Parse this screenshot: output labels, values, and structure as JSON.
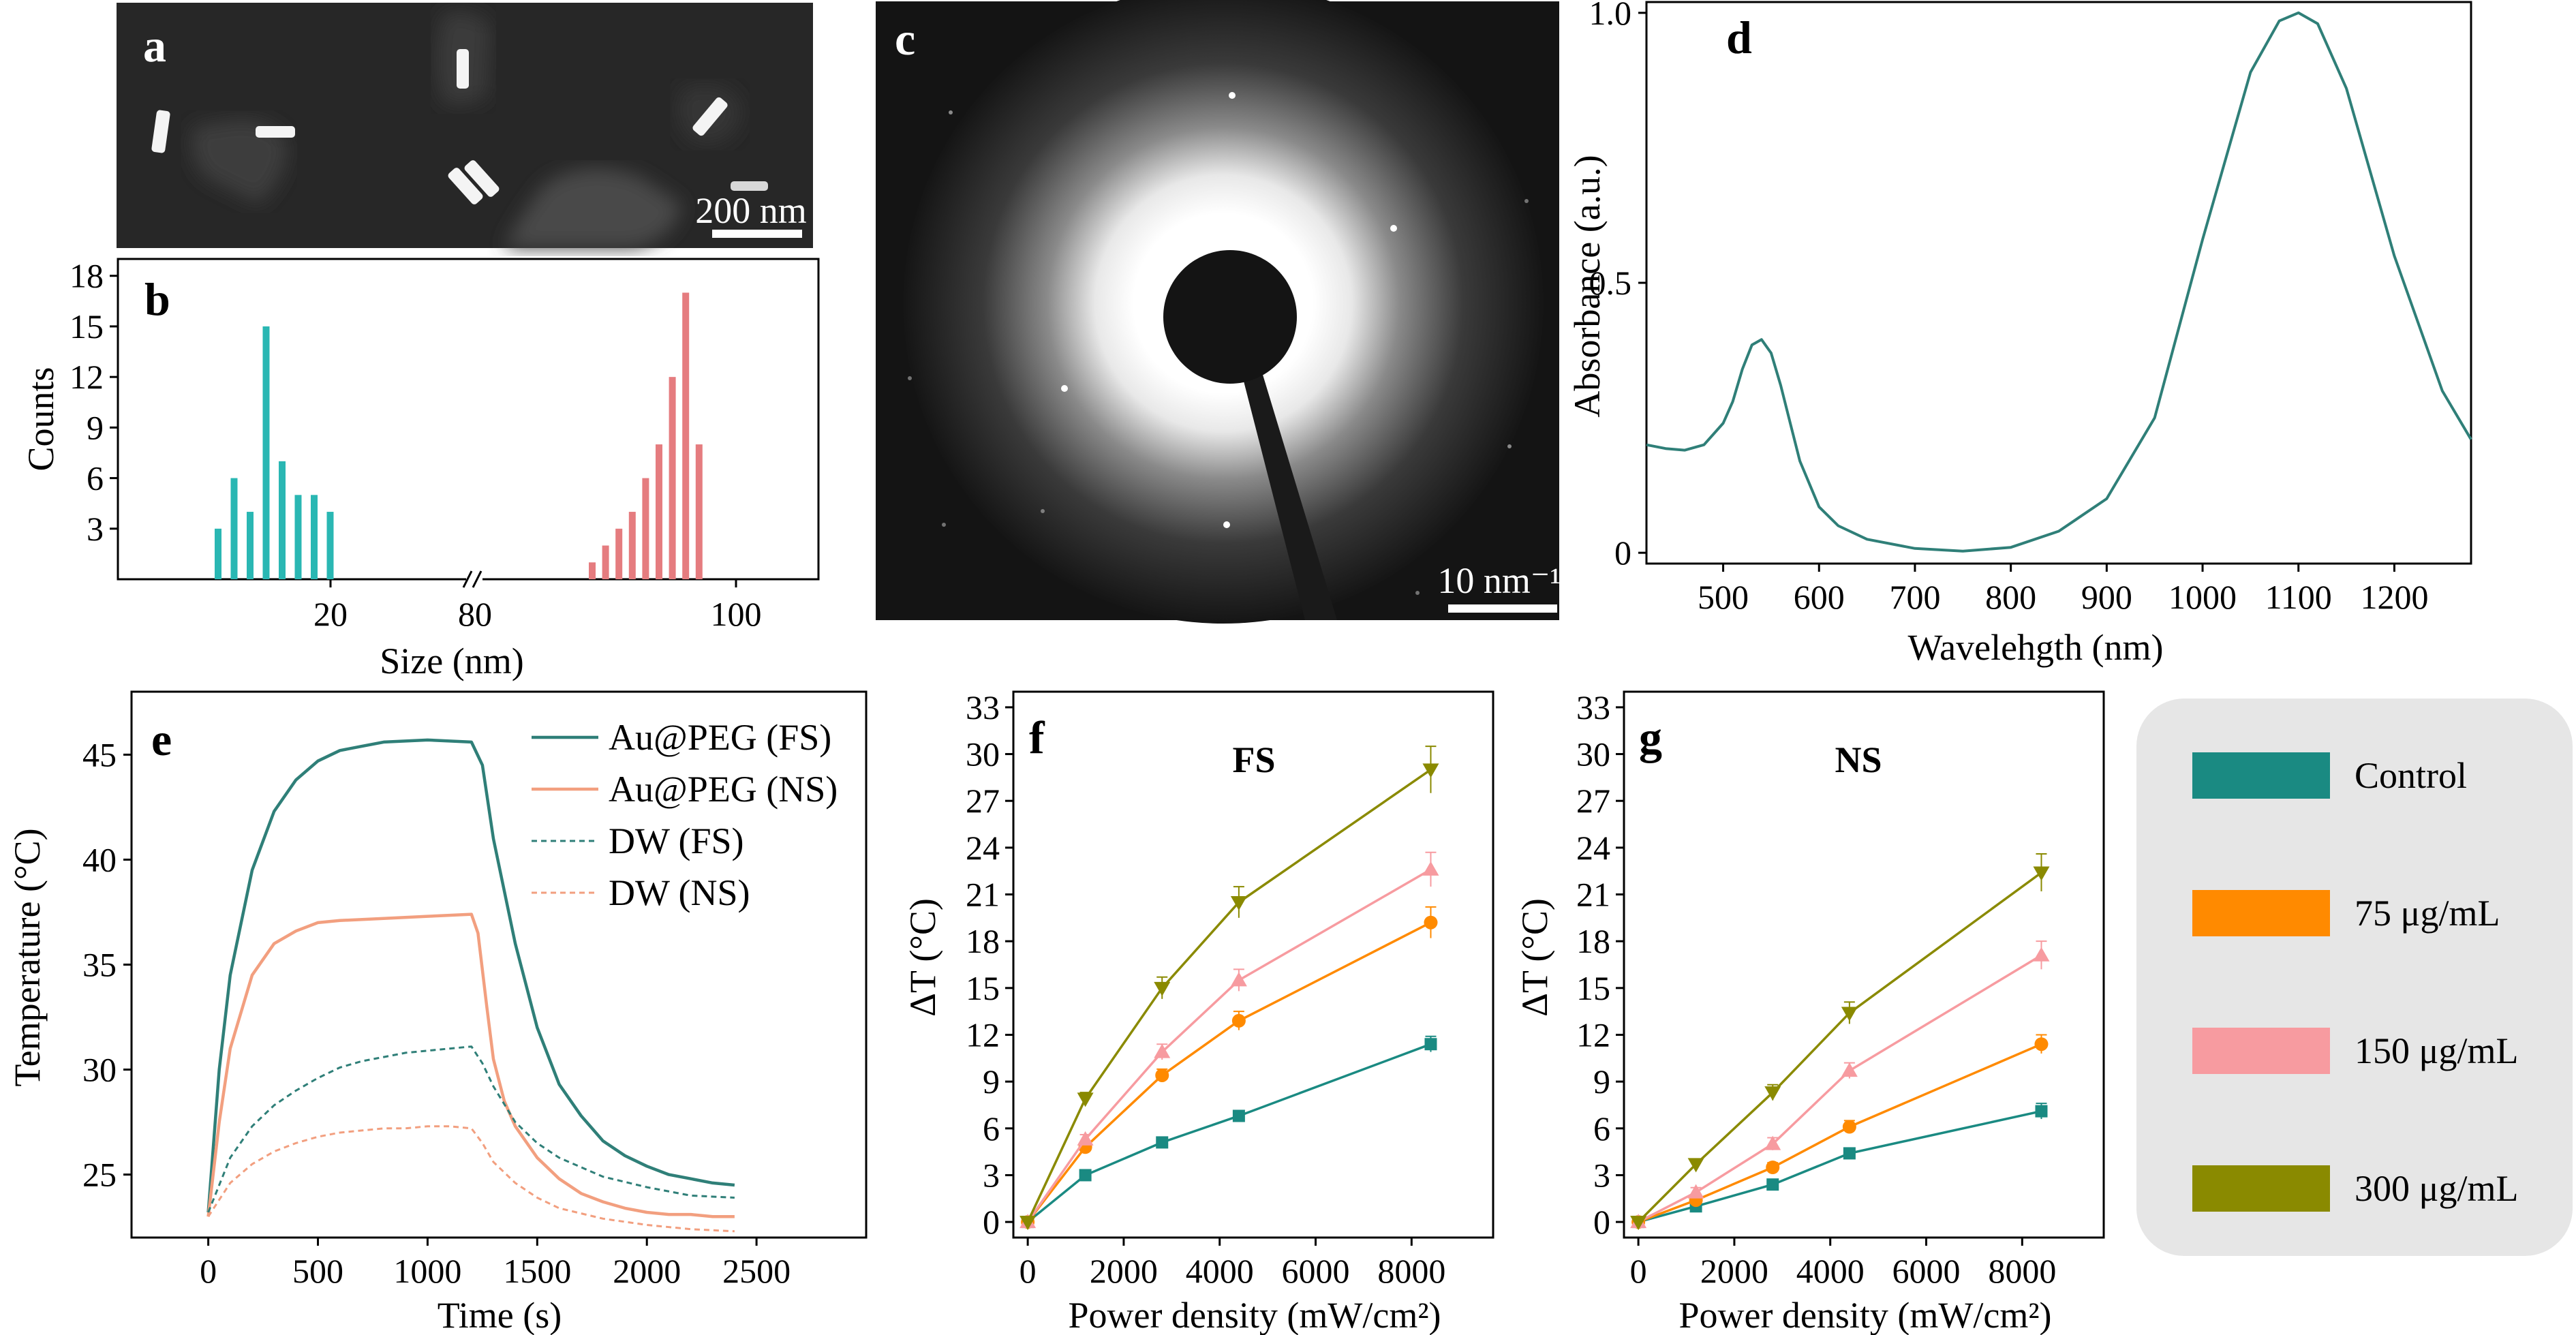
{
  "colors": {
    "teal": "#2f7f78",
    "salmon": "#f29f7f",
    "teal_bar": "#2ab7b3",
    "red_bar": "#e57c7f",
    "control": "#1a8a82",
    "c75": "#ff8a00",
    "c150": "#f79ba0",
    "c300": "#8a8a00",
    "legend_bg": "#e6e6e6"
  },
  "panels": {
    "a": {
      "letter": "a",
      "scale_label": "200 nm"
    },
    "b": {
      "letter": "b"
    },
    "c": {
      "letter": "c",
      "scale_label": "10 nm⁻¹"
    },
    "d": {
      "letter": "d"
    },
    "e": {
      "letter": "e"
    },
    "f": {
      "letter": "f",
      "title": "FS"
    },
    "g": {
      "letter": "g",
      "title": "NS"
    }
  },
  "legend": {
    "items": [
      {
        "label": "Control",
        "color": "#1a8a82"
      },
      {
        "label": "75 μg/mL",
        "color": "#ff8a00"
      },
      {
        "label": "150 μg/mL",
        "color": "#f79ba0"
      },
      {
        "label": "300 μg/mL",
        "color": "#8a8a00"
      }
    ]
  },
  "chart_data": [
    {
      "id": "b",
      "type": "bar",
      "xlabel": "Size (nm)",
      "ylabel": "Counts",
      "ylim": [
        0,
        19
      ],
      "yticks": [
        3,
        6,
        9,
        12,
        15,
        18
      ],
      "xtick_labels": [
        "20",
        "80",
        "100"
      ],
      "axis_break": true,
      "series": [
        {
          "name": "",
          "x": [
            12,
            13,
            14,
            15,
            16,
            17,
            18,
            19,
            20
          ],
          "values": [
            3,
            6,
            4,
            15,
            7,
            5,
            5,
            4,
            0
          ]
        },
        {
          "name": "",
          "x": [
            88,
            89,
            90,
            91,
            92,
            93,
            94,
            95,
            96
          ],
          "values": [
            1,
            2,
            3,
            4,
            6,
            8,
            12,
            17,
            8
          ]
        }
      ]
    },
    {
      "id": "d",
      "type": "line",
      "xlabel": "Wavelehgth (nm)",
      "ylabel": "Absorbance (a.u.)",
      "xlim": [
        420,
        1280
      ],
      "ylim": [
        -0.02,
        1.02
      ],
      "xticks": [
        500,
        600,
        700,
        800,
        900,
        1000,
        1100,
        1200
      ],
      "yticks": [
        0,
        0.5,
        1.0
      ],
      "ytick_labels": [
        "0",
        "0.5",
        "1.0"
      ],
      "series": [
        {
          "name": "",
          "x": [
            420,
            440,
            460,
            480,
            500,
            510,
            520,
            530,
            540,
            550,
            560,
            570,
            580,
            600,
            620,
            650,
            700,
            750,
            800,
            850,
            900,
            950,
            1000,
            1050,
            1080,
            1100,
            1120,
            1150,
            1200,
            1250,
            1280
          ],
          "y": [
            0.2,
            0.193,
            0.19,
            0.2,
            0.24,
            0.28,
            0.34,
            0.385,
            0.395,
            0.37,
            0.31,
            0.24,
            0.17,
            0.085,
            0.05,
            0.025,
            0.008,
            0.003,
            0.01,
            0.04,
            0.1,
            0.25,
            0.58,
            0.89,
            0.985,
            1.0,
            0.98,
            0.86,
            0.55,
            0.3,
            0.21
          ]
        }
      ]
    },
    {
      "id": "e",
      "type": "line",
      "xlabel": "Time (s)",
      "ylabel": "Temperature (°C)",
      "xlim": [
        -350,
        3000
      ],
      "ylim": [
        22,
        48
      ],
      "xticks": [
        0,
        500,
        1000,
        1500,
        2000,
        2500
      ],
      "yticks": [
        25,
        30,
        35,
        40,
        45
      ],
      "series": [
        {
          "name": "Au@PEG (FS)",
          "style": "solid",
          "color": "#2f7f78",
          "x": [
            0,
            50,
            100,
            200,
            300,
            400,
            500,
            600,
            700,
            800,
            1000,
            1200,
            1250,
            1300,
            1400,
            1500,
            1600,
            1700,
            1800,
            1900,
            2000,
            2100,
            2200,
            2300,
            2400
          ],
          "y": [
            23.2,
            30,
            34.5,
            39.5,
            42.3,
            43.8,
            44.7,
            45.2,
            45.4,
            45.6,
            45.7,
            45.6,
            44.5,
            41,
            36,
            32,
            29.3,
            27.8,
            26.6,
            25.9,
            25.4,
            25.0,
            24.8,
            24.6,
            24.5
          ]
        },
        {
          "name": "Au@PEG (NS)",
          "style": "solid",
          "color": "#f29f7f",
          "x": [
            0,
            50,
            100,
            200,
            300,
            400,
            500,
            600,
            800,
            1000,
            1200,
            1230,
            1270,
            1300,
            1350,
            1400,
            1500,
            1600,
            1700,
            1800,
            1900,
            2000,
            2100,
            2200,
            2300,
            2400
          ],
          "y": [
            23.0,
            27.5,
            31,
            34.5,
            36,
            36.6,
            37,
            37.1,
            37.2,
            37.3,
            37.4,
            36.5,
            33,
            30.5,
            28.5,
            27.3,
            25.8,
            24.8,
            24.1,
            23.7,
            23.4,
            23.2,
            23.1,
            23.1,
            23.0,
            23.0
          ]
        },
        {
          "name": "DW (FS)",
          "style": "dashed",
          "color": "#2f7f78",
          "x": [
            0,
            100,
            200,
            300,
            400,
            500,
            600,
            700,
            800,
            900,
            1000,
            1100,
            1200,
            1250,
            1300,
            1400,
            1500,
            1600,
            1800,
            2000,
            2200,
            2400
          ],
          "y": [
            23.2,
            25.8,
            27.3,
            28.3,
            29,
            29.6,
            30.1,
            30.4,
            30.6,
            30.8,
            30.9,
            31.0,
            31.1,
            30.3,
            29.2,
            27.5,
            26.5,
            25.8,
            24.9,
            24.4,
            24.0,
            23.9
          ]
        },
        {
          "name": "DW (NS)",
          "style": "dashed",
          "color": "#f29f7f",
          "x": [
            0,
            100,
            200,
            300,
            400,
            500,
            600,
            700,
            800,
            900,
            1000,
            1100,
            1200,
            1250,
            1300,
            1400,
            1500,
            1600,
            1800,
            2000,
            2200,
            2400
          ],
          "y": [
            23.0,
            24.6,
            25.5,
            26.1,
            26.5,
            26.8,
            27.0,
            27.1,
            27.2,
            27.2,
            27.3,
            27.3,
            27.2,
            26.5,
            25.6,
            24.6,
            23.9,
            23.4,
            22.9,
            22.6,
            22.4,
            22.3
          ]
        }
      ]
    },
    {
      "id": "f",
      "type": "line",
      "title": "FS",
      "xlabel": "Power density (mW/cm²)",
      "ylabel": "ΔT (°C)",
      "xlim": [
        -300,
        9700
      ],
      "ylim": [
        -1,
        34
      ],
      "xticks": [
        0,
        2000,
        4000,
        6000,
        8000
      ],
      "yticks": [
        0,
        3,
        6,
        9,
        12,
        15,
        18,
        21,
        24,
        27,
        30,
        33
      ],
      "x": [
        0,
        1200,
        2800,
        4400,
        8400
      ],
      "series": [
        {
          "name": "Control",
          "marker": "square",
          "color": "#1a8a82",
          "values": [
            0,
            3.0,
            5.1,
            6.8,
            11.4
          ],
          "err": [
            0.2,
            0.2,
            0.3,
            0.3,
            0.5
          ]
        },
        {
          "name": "75 μg/mL",
          "marker": "circle",
          "color": "#ff8a00",
          "values": [
            0,
            4.8,
            9.4,
            12.9,
            19.2
          ],
          "err": [
            0.2,
            0.3,
            0.4,
            0.6,
            1.0
          ]
        },
        {
          "name": "150 μg/mL",
          "marker": "triangle-up",
          "color": "#f79ba0",
          "values": [
            0,
            5.3,
            10.9,
            15.5,
            22.6
          ],
          "err": [
            0.2,
            0.3,
            0.5,
            0.7,
            1.1
          ]
        },
        {
          "name": "300 μg/mL",
          "marker": "triangle-down",
          "color": "#8a8a00",
          "values": [
            0,
            7.9,
            15.0,
            20.5,
            29.0
          ],
          "err": [
            0.2,
            0.4,
            0.7,
            1.0,
            1.5
          ]
        }
      ]
    },
    {
      "id": "g",
      "type": "line",
      "title": "NS",
      "xlabel": "Power density (mW/cm²)",
      "ylabel": "ΔT (°C)",
      "xlim": [
        -300,
        9700
      ],
      "ylim": [
        -1,
        34
      ],
      "xticks": [
        0,
        2000,
        4000,
        6000,
        8000
      ],
      "yticks": [
        0,
        3,
        6,
        9,
        12,
        15,
        18,
        21,
        24,
        27,
        30,
        33
      ],
      "x": [
        0,
        1200,
        2800,
        4400,
        8400
      ],
      "series": [
        {
          "name": "Control",
          "marker": "square",
          "color": "#1a8a82",
          "values": [
            0,
            1.0,
            2.4,
            4.4,
            7.1
          ],
          "err": [
            0.2,
            0.2,
            0.3,
            0.3,
            0.5
          ]
        },
        {
          "name": "75 μg/mL",
          "marker": "circle",
          "color": "#ff8a00",
          "values": [
            0,
            1.4,
            3.5,
            6.1,
            11.4
          ],
          "err": [
            0.2,
            0.2,
            0.3,
            0.4,
            0.6
          ]
        },
        {
          "name": "150 μg/mL",
          "marker": "triangle-up",
          "color": "#f79ba0",
          "values": [
            0,
            1.9,
            5.0,
            9.7,
            17.1
          ],
          "err": [
            0.2,
            0.3,
            0.4,
            0.5,
            0.9
          ]
        },
        {
          "name": "300 μg/mL",
          "marker": "triangle-down",
          "color": "#8a8a00",
          "values": [
            0,
            3.7,
            8.3,
            13.4,
            22.4
          ],
          "err": [
            0.2,
            0.3,
            0.5,
            0.7,
            1.2
          ]
        }
      ]
    }
  ]
}
